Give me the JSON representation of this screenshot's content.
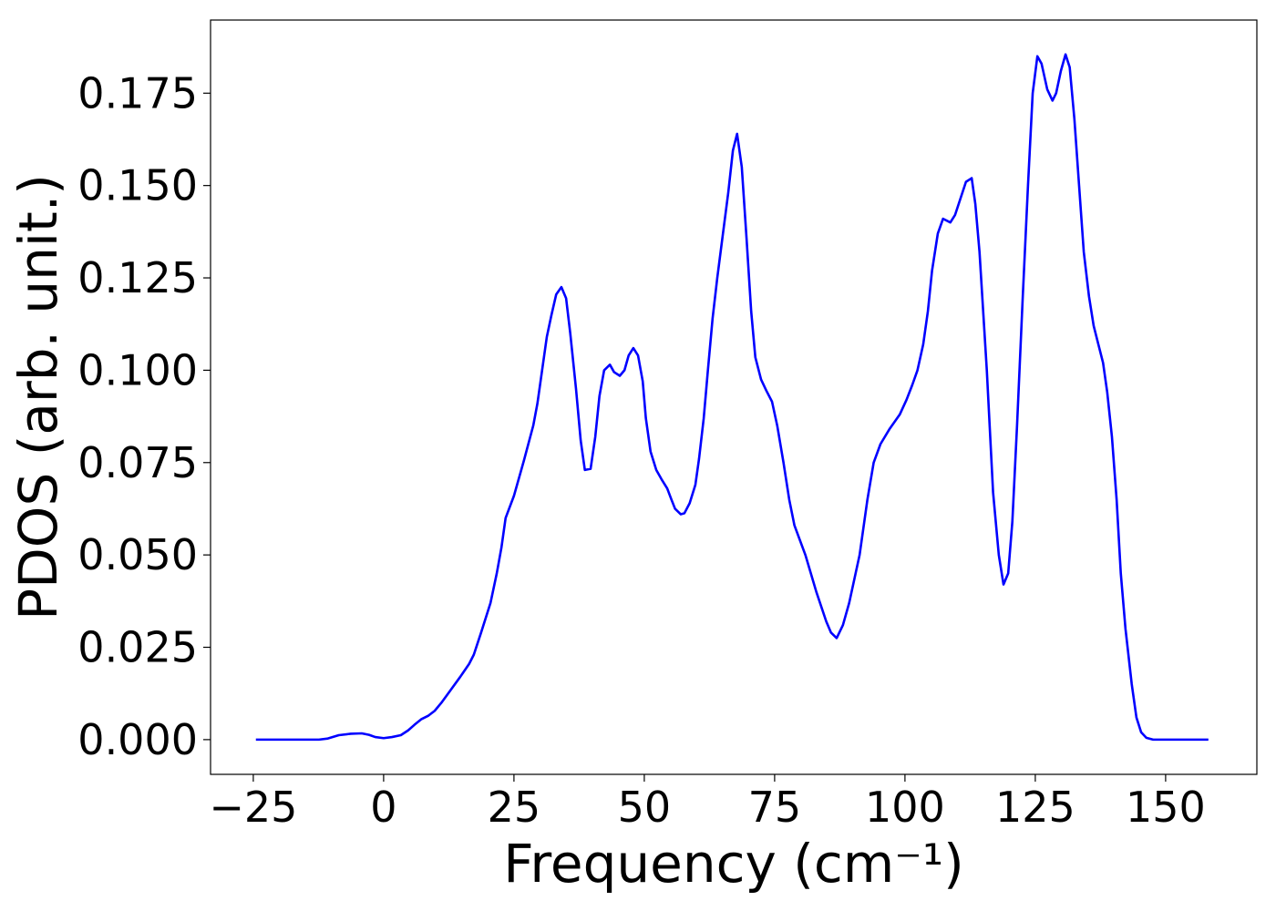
{
  "chart_data": {
    "type": "line",
    "xlabel": "Frequency (cm⁻¹)",
    "ylabel": "PDOS (arb. unit.)",
    "color": "#0000ff",
    "xlim": [
      -33.2,
      167.5
    ],
    "ylim": [
      -0.0094,
      0.1948
    ],
    "xticks": [
      {
        "value": -25,
        "label": "−25"
      },
      0,
      25,
      50,
      75,
      100,
      125,
      150
    ],
    "yticks": [
      {
        "value": 0,
        "label": "0.000"
      },
      {
        "value": 0.025,
        "label": "0.025"
      },
      {
        "value": 0.05,
        "label": "0.050"
      },
      {
        "value": 0.075,
        "label": "0.075"
      },
      {
        "value": 0.1,
        "label": "0.100"
      },
      {
        "value": 0.125,
        "label": "0.125"
      },
      {
        "value": 0.15,
        "label": "0.150"
      },
      {
        "value": 0.175,
        "label": "0.175"
      }
    ],
    "grid": false,
    "x": [
      -24.5,
      -12.4,
      -10.7,
      -8.6,
      -6.3,
      -4.2,
      -2.8,
      -1.6,
      0,
      1.6,
      3.3,
      4.7,
      5.9,
      7.2,
      8.6,
      9.8,
      11.2,
      12.9,
      14.7,
      16.4,
      17.3,
      18.7,
      20.5,
      21.7,
      22.6,
      23.4,
      25,
      26.9,
      28.7,
      29.5,
      30.4,
      31.3,
      32.2,
      33.1,
      34.1,
      35,
      35.8,
      36.9,
      37.8,
      38.6,
      39.7,
      40.6,
      41.4,
      42.3,
      43.4,
      44.2,
      45.3,
      46.2,
      47,
      47.9,
      48.8,
      49.7,
      50.3,
      51.2,
      52.3,
      53.3,
      54.4,
      55.2,
      55.9,
      57,
      57.7,
      58.7,
      59.8,
      60.5,
      61.4,
      62.2,
      63.1,
      64,
      65,
      66.1,
      67,
      67.8,
      68.7,
      69.6,
      70.5,
      71.3,
      72.4,
      73.4,
      74.5,
      75.5,
      76.7,
      77.8,
      78.8,
      80.9,
      83,
      84.9,
      85.8,
      86.9,
      88.1,
      89.3,
      91.3,
      92.8,
      94,
      95.3,
      97,
      99,
      100.3,
      101.4,
      102.4,
      103.5,
      104.4,
      105.2,
      106.3,
      107.3,
      108.7,
      109.6,
      111.7,
      112.8,
      113.5,
      114.3,
      115.7,
      116.9,
      118,
      118.9,
      119.8,
      120.6,
      121.5,
      122.6,
      123.6,
      124.5,
      125.4,
      126.2,
      127.3,
      128.3,
      129,
      129.9,
      130.8,
      131.6,
      132.5,
      133.4,
      134.3,
      135.3,
      136.2,
      137.1,
      138,
      138.8,
      139.7,
      140.6,
      141.4,
      142.3,
      143.5,
      144.4,
      145.3,
      146.3,
      147.6,
      158.2
    ],
    "values": [
      0,
      0,
      0.0003,
      0.0012,
      0.0016,
      0.0017,
      0.0013,
      0.0007,
      0.0004,
      0.0007,
      0.0012,
      0.0025,
      0.004,
      0.0055,
      0.0065,
      0.0078,
      0.0102,
      0.0135,
      0.017,
      0.0205,
      0.023,
      0.029,
      0.037,
      0.045,
      0.052,
      0.06,
      0.066,
      0.0755,
      0.085,
      0.091,
      0.1,
      0.109,
      0.115,
      0.1205,
      0.1225,
      0.1195,
      0.11,
      0.095,
      0.081,
      0.073,
      0.0733,
      0.082,
      0.093,
      0.1,
      0.1015,
      0.0995,
      0.0985,
      0.1,
      0.104,
      0.106,
      0.104,
      0.097,
      0.087,
      0.078,
      0.073,
      0.0705,
      0.068,
      0.065,
      0.0625,
      0.061,
      0.0613,
      0.064,
      0.069,
      0.076,
      0.087,
      0.1,
      0.114,
      0.125,
      0.136,
      0.148,
      0.1595,
      0.164,
      0.155,
      0.136,
      0.116,
      0.1035,
      0.0975,
      0.0945,
      0.0915,
      0.085,
      0.075,
      0.065,
      0.058,
      0.05,
      0.04,
      0.032,
      0.029,
      0.0275,
      0.031,
      0.037,
      0.05,
      0.065,
      0.075,
      0.08,
      0.084,
      0.088,
      0.092,
      0.096,
      0.1,
      0.107,
      0.116,
      0.127,
      0.137,
      0.141,
      0.14,
      0.142,
      0.151,
      0.152,
      0.145,
      0.132,
      0.1,
      0.067,
      0.05,
      0.042,
      0.045,
      0.059,
      0.085,
      0.12,
      0.15,
      0.175,
      0.185,
      0.183,
      0.176,
      0.173,
      0.175,
      0.181,
      0.1855,
      0.182,
      0.168,
      0.15,
      0.132,
      0.12,
      0.112,
      0.107,
      0.102,
      0.094,
      0.082,
      0.065,
      0.045,
      0.03,
      0.015,
      0.006,
      0.002,
      0.0005,
      0,
      0
    ]
  }
}
